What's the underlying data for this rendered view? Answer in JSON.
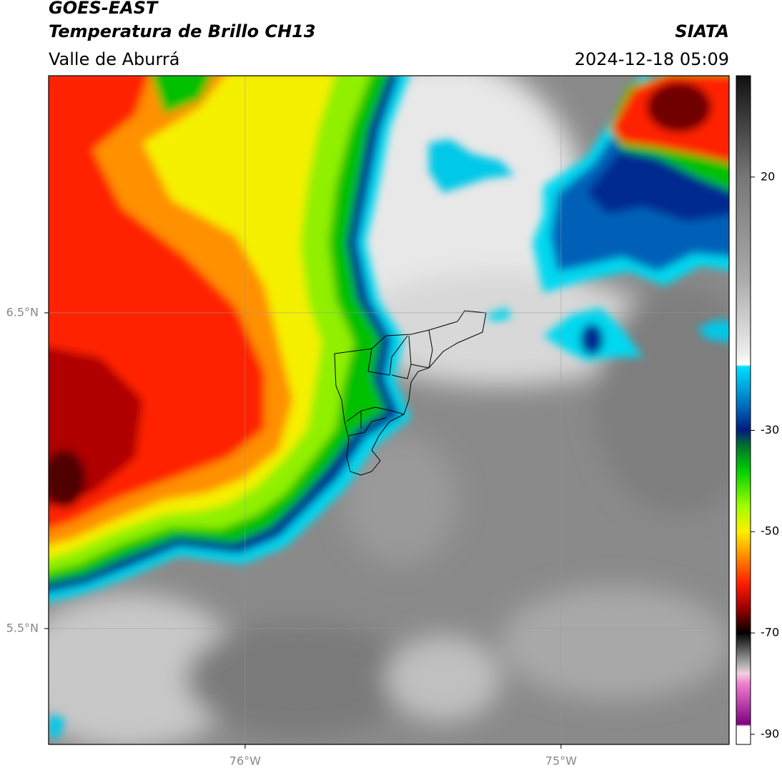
{
  "header": {
    "title": "GOES-EAST",
    "subtitle": "Temperatura de Brillo CH13",
    "region": "Valle de Aburrá",
    "source": "SIATA",
    "datetime": "2024-12-18 05:09"
  },
  "map": {
    "xlim": [
      -76.622,
      -74.468
    ],
    "ylim": [
      5.133,
      7.251
    ],
    "xticks": [
      {
        "value": -76,
        "label": "76°W"
      },
      {
        "value": -75,
        "label": "75°W"
      }
    ],
    "yticks": [
      {
        "value": 6.5,
        "label": "6.5°N"
      },
      {
        "value": 5.5,
        "label": "5.5°N"
      }
    ],
    "grid": true
  },
  "colorbar": {
    "lim": [
      -92,
      40
    ],
    "ticks": [
      20,
      -30,
      -50,
      -70,
      -90
    ]
  }
}
